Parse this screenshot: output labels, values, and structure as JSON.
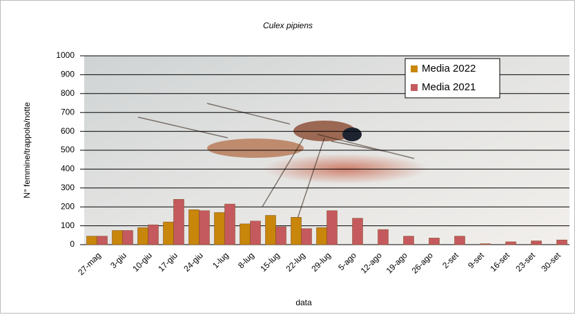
{
  "chart_data": {
    "type": "bar",
    "title": "Culex pipiens",
    "x_label": "data",
    "y_label": "N° femmine/trappola/notte",
    "categories": [
      "27-mag",
      "3-giu",
      "10-giu",
      "17-giu",
      "24-giu",
      "1-lug",
      "8-lug",
      "15-lug",
      "22-lug",
      "29-lug",
      "5-ago",
      "12-ago",
      "19-ago",
      "26-ago",
      "2-set",
      "9-set",
      "16-set",
      "23-set",
      "30-set"
    ],
    "series": [
      {
        "name": "Media 2022",
        "color": "#c8860a",
        "values": [
          45,
          75,
          90,
          120,
          185,
          170,
          110,
          155,
          145,
          90,
          null,
          null,
          null,
          null,
          null,
          null,
          null,
          null,
          null
        ]
      },
      {
        "name": "Media 2021",
        "color": "#c55a5e",
        "values": [
          45,
          75,
          105,
          240,
          180,
          215,
          125,
          95,
          85,
          180,
          140,
          80,
          45,
          35,
          45,
          5,
          15,
          20,
          25
        ]
      }
    ],
    "ylim": [
      0,
      1000
    ],
    "yticks": [
      0,
      100,
      200,
      300,
      400,
      500,
      600,
      700,
      800,
      900,
      1000
    ],
    "grid": true,
    "legend": "top-right"
  }
}
